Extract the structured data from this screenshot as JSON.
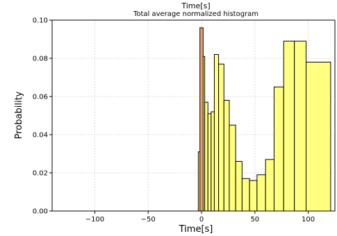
{
  "chart_data": {
    "type": "bar",
    "title": "Time[s]",
    "subtitle": "Total average normalized histogram",
    "xlabel": "Time[s]",
    "ylabel": "Probability",
    "xlim": [
      -140,
      125
    ],
    "ylim": [
      0,
      0.1
    ],
    "xticks": [
      -100,
      -50,
      0,
      50,
      100
    ],
    "yticks": [
      0,
      0.02,
      0.04,
      0.06,
      0.08,
      0.1
    ],
    "xtick_labels": [
      "−100",
      "−50",
      "0",
      "50",
      "100"
    ],
    "ytick_labels": [
      "0.00",
      "0.02",
      "0.04",
      "0.06",
      "0.08",
      "0.10"
    ],
    "grid": true,
    "colors": {
      "bars": "#ffff80",
      "highlight": "#e8a070",
      "edge": "#000000",
      "grid": "#cfcfcf"
    },
    "series": [
      {
        "bins": [
          {
            "x0": -3,
            "x1": -1,
            "y": 0.031
          },
          {
            "x0": -1,
            "x1": 1,
            "y": 0.096
          },
          {
            "x0": 1,
            "x1": 3,
            "y": 0.081
          },
          {
            "x0": 3,
            "x1": 6,
            "y": 0.057
          },
          {
            "x0": 6,
            "x1": 9,
            "y": 0.051
          },
          {
            "x0": 9,
            "x1": 12,
            "y": 0.052
          },
          {
            "x0": 12,
            "x1": 16,
            "y": 0.082
          },
          {
            "x0": 16,
            "x1": 21,
            "y": 0.077
          },
          {
            "x0": 21,
            "x1": 26,
            "y": 0.058
          },
          {
            "x0": 26,
            "x1": 32,
            "y": 0.045
          },
          {
            "x0": 32,
            "x1": 38,
            "y": 0.026
          },
          {
            "x0": 38,
            "x1": 45,
            "y": 0.017
          },
          {
            "x0": 45,
            "x1": 52,
            "y": 0.016
          },
          {
            "x0": 52,
            "x1": 60,
            "y": 0.019
          },
          {
            "x0": 60,
            "x1": 68,
            "y": 0.027
          },
          {
            "x0": 68,
            "x1": 77,
            "y": 0.065
          },
          {
            "x0": 77,
            "x1": 87,
            "y": 0.089
          },
          {
            "x0": 87,
            "x1": 98,
            "y": 0.089
          },
          {
            "x0": 98,
            "x1": 121,
            "y": 0.078
          }
        ]
      },
      {
        "bins": [
          {
            "x0": -1.5,
            "x1": 1.5,
            "y": 0.096
          }
        ]
      }
    ]
  }
}
